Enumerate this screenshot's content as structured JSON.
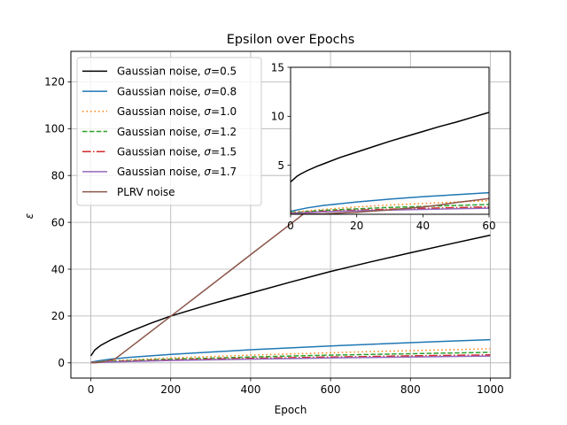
{
  "chart_data": {
    "type": "line",
    "title": "Epsilon over Epochs",
    "xlabel": "Epoch",
    "ylabel": "ε",
    "xlim": [
      -50,
      1050
    ],
    "ylim": [
      -6.5,
      133
    ],
    "xticks": [
      0,
      200,
      400,
      600,
      800,
      1000
    ],
    "yticks": [
      0,
      20,
      40,
      60,
      80,
      100,
      120
    ],
    "grid": true,
    "legend_position": "top-left",
    "series": [
      {
        "name_prefix": "Gaussian noise, ",
        "sigma_label": "σ=0.5",
        "color": "#000000",
        "style": "solid",
        "x": [
          0,
          10,
          25,
          50,
          100,
          150,
          200,
          300,
          400,
          500,
          600,
          700,
          800,
          900,
          1000
        ],
        "y": [
          3.0,
          5.5,
          7.5,
          9.8,
          13.5,
          16.9,
          20.0,
          25.1,
          29.8,
          34.5,
          39.0,
          43.1,
          47.0,
          50.8,
          54.5
        ]
      },
      {
        "name_prefix": "Gaussian noise, ",
        "sigma_label": "σ=0.8",
        "color": "#1f77b4",
        "style": "solid",
        "x": [
          0,
          25,
          50,
          100,
          200,
          300,
          400,
          500,
          600,
          700,
          800,
          900,
          1000
        ],
        "y": [
          0.3,
          1.0,
          1.6,
          2.4,
          3.6,
          4.6,
          5.6,
          6.4,
          7.2,
          7.9,
          8.6,
          9.3,
          9.9
        ]
      },
      {
        "name_prefix": "Gaussian noise, ",
        "sigma_label": "σ=1.0",
        "color": "#ff7f0e",
        "style": "dotted",
        "x": [
          0,
          50,
          100,
          200,
          300,
          400,
          500,
          600,
          700,
          800,
          900,
          1000
        ],
        "y": [
          0.2,
          0.9,
          1.3,
          2.1,
          2.7,
          3.3,
          3.8,
          4.3,
          4.8,
          5.2,
          5.6,
          6.0
        ]
      },
      {
        "name_prefix": "Gaussian noise, ",
        "sigma_label": "σ=1.2",
        "color": "#2ca02c",
        "style": "dashed",
        "x": [
          0,
          50,
          100,
          200,
          300,
          400,
          500,
          600,
          700,
          800,
          900,
          1000
        ],
        "y": [
          0.15,
          0.7,
          1.0,
          1.6,
          2.0,
          2.5,
          2.9,
          3.3,
          3.6,
          3.9,
          4.2,
          4.5
        ]
      },
      {
        "name_prefix": "Gaussian noise, ",
        "sigma_label": "σ=1.5",
        "color": "#d62728",
        "style": "dashdot",
        "x": [
          0,
          50,
          100,
          200,
          300,
          400,
          500,
          600,
          700,
          800,
          900,
          1000
        ],
        "y": [
          0.1,
          0.5,
          0.8,
          1.2,
          1.6,
          1.9,
          2.2,
          2.5,
          2.7,
          3.0,
          3.2,
          3.4
        ]
      },
      {
        "name_prefix": "Gaussian noise, ",
        "sigma_label": "σ=1.7",
        "color": "#9467bd",
        "style": "solid",
        "x": [
          0,
          50,
          100,
          200,
          300,
          400,
          500,
          600,
          700,
          800,
          900,
          1000
        ],
        "y": [
          0.08,
          0.4,
          0.6,
          1.0,
          1.3,
          1.6,
          1.8,
          2.1,
          2.3,
          2.5,
          2.7,
          2.9
        ]
      },
      {
        "name": "PLRV noise",
        "color": "#8c564b",
        "style": "solid",
        "x": [
          0,
          10,
          20,
          30,
          40,
          50,
          60,
          100,
          200,
          300,
          400,
          500,
          550
        ],
        "y": [
          0.0,
          0.05,
          0.2,
          0.45,
          0.75,
          1.2,
          1.6,
          6.8,
          19.9,
          33.0,
          46.2,
          59.3,
          65.9
        ]
      }
    ],
    "inset": {
      "xlim": [
        0,
        60
      ],
      "ylim": [
        0,
        15
      ],
      "xticks": [
        0,
        20,
        40,
        60
      ],
      "yticks": [
        5,
        10,
        15
      ],
      "series": [
        {
          "x": [
            0,
            1,
            2,
            3,
            5,
            8,
            10,
            15,
            20,
            25,
            30,
            35,
            40,
            45,
            50,
            55,
            60
          ],
          "y": [
            3.3,
            3.6,
            3.9,
            4.1,
            4.45,
            4.9,
            5.15,
            5.8,
            6.35,
            6.9,
            7.45,
            7.95,
            8.45,
            8.95,
            9.4,
            9.9,
            10.4
          ]
        },
        {
          "x": [
            0,
            5,
            10,
            20,
            30,
            40,
            50,
            60
          ],
          "y": [
            0.3,
            0.65,
            0.9,
            1.25,
            1.55,
            1.8,
            2.0,
            2.2
          ]
        },
        {
          "x": [
            0,
            10,
            20,
            30,
            40,
            50,
            60
          ],
          "y": [
            0.2,
            0.5,
            0.75,
            0.95,
            1.1,
            1.25,
            1.4
          ]
        },
        {
          "x": [
            0,
            10,
            20,
            30,
            40,
            50,
            60
          ],
          "y": [
            0.15,
            0.4,
            0.55,
            0.7,
            0.8,
            0.9,
            1.0
          ]
        },
        {
          "x": [
            0,
            10,
            20,
            30,
            40,
            50,
            60
          ],
          "y": [
            0.1,
            0.3,
            0.42,
            0.52,
            0.6,
            0.68,
            0.75
          ]
        },
        {
          "x": [
            0,
            10,
            20,
            30,
            40,
            50,
            60
          ],
          "y": [
            0.08,
            0.25,
            0.35,
            0.43,
            0.5,
            0.56,
            0.62
          ]
        },
        {
          "x": [
            0,
            10,
            20,
            30,
            35,
            40,
            45,
            50,
            55,
            60
          ],
          "y": [
            0.0,
            0.05,
            0.2,
            0.45,
            0.6,
            0.75,
            0.95,
            1.2,
            1.4,
            1.6
          ]
        }
      ]
    }
  }
}
